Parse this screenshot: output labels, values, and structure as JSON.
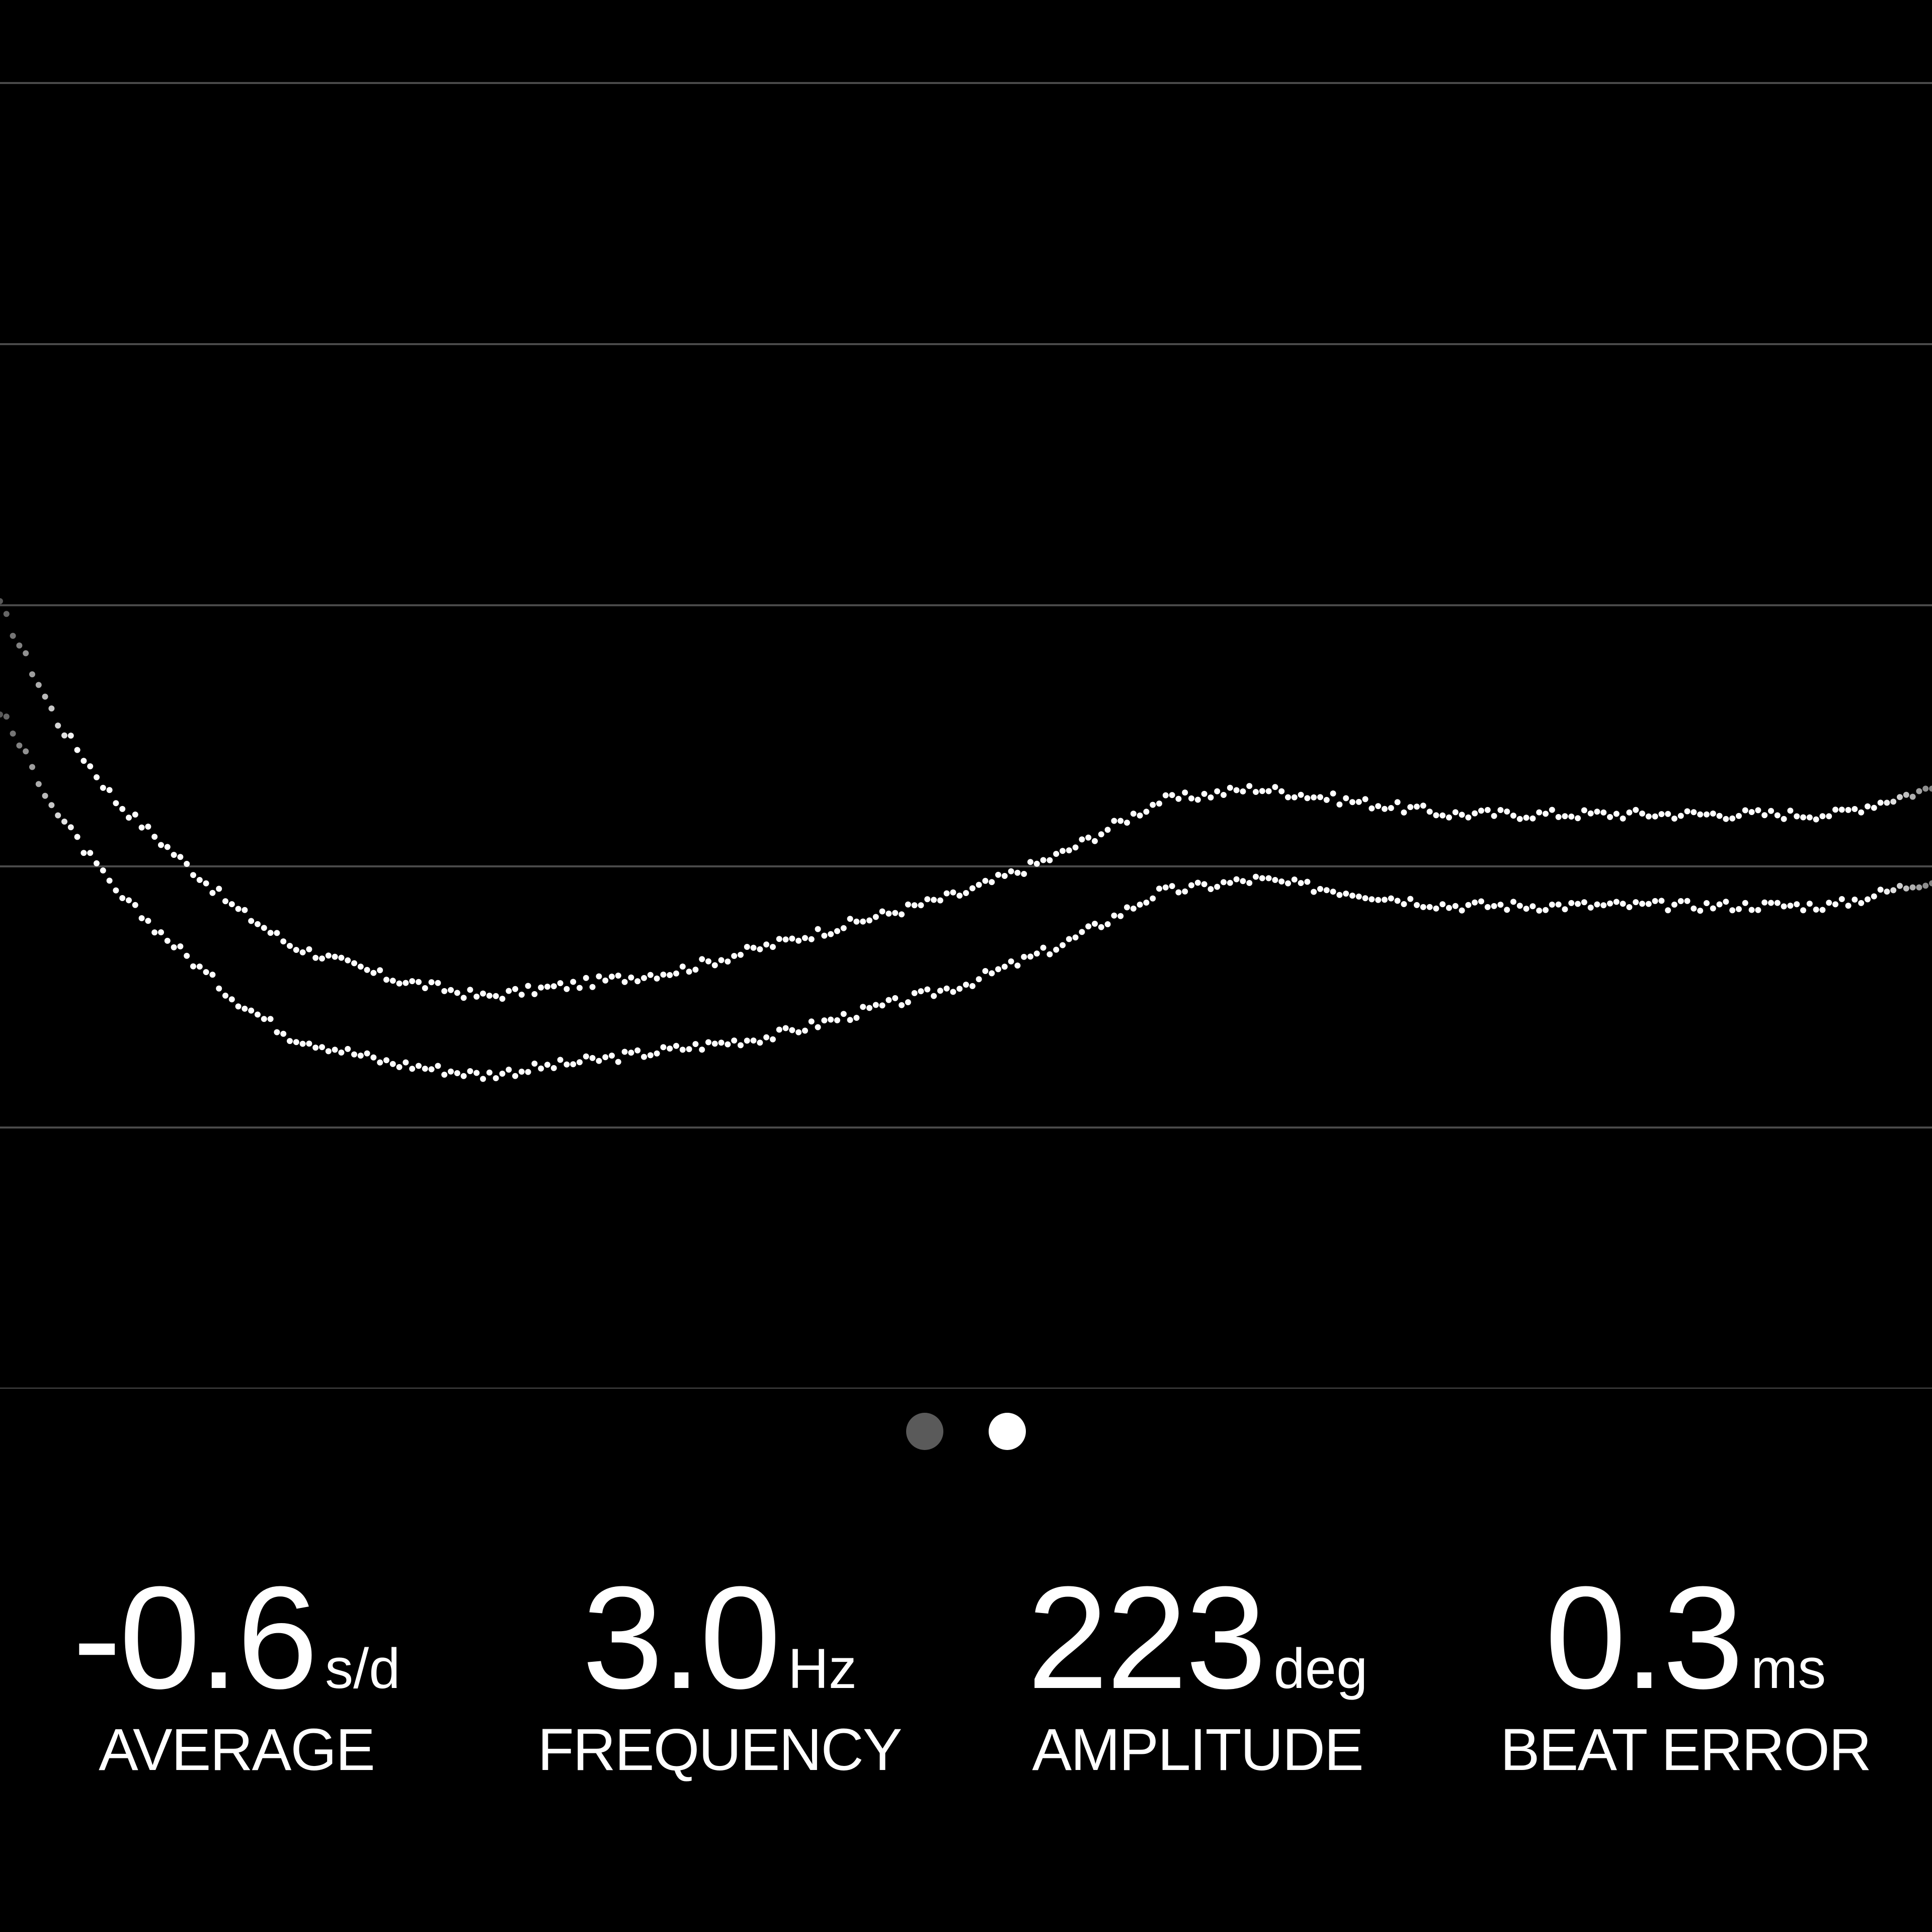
{
  "colors": {
    "background": "#000000",
    "gridline": "#4a4a4a",
    "points": "#ffffff",
    "dot_inactive": "#5a5a5a",
    "dot_active": "#ffffff"
  },
  "pager": {
    "count": 2,
    "active_index": 1
  },
  "stats": {
    "average": {
      "value": "-0.6",
      "unit": "s/d",
      "label": "AVERAGE"
    },
    "frequency": {
      "value": "3.0",
      "unit": "Hz",
      "label": "FREQUENCY"
    },
    "amplitude": {
      "value": "223",
      "unit": "deg",
      "label": "AMPLITUDE"
    },
    "beat_error": {
      "value": "0.3",
      "unit": "ms",
      "label": "BEAT ERROR"
    }
  },
  "chart_data": {
    "type": "scatter",
    "title": "",
    "xlabel": "",
    "ylabel": "",
    "gridlines": 6,
    "xlim": [
      0,
      100
    ],
    "ylim": [
      -5,
      5
    ],
    "series": [
      {
        "x": [
          0,
          3,
          6,
          9,
          12,
          15,
          20,
          25,
          30,
          35,
          40,
          45,
          50,
          55,
          60,
          65,
          70,
          75,
          80,
          85,
          90,
          95,
          100
        ],
        "y": [
          1.0,
          0.1,
          -0.5,
          -0.9,
          -1.3,
          -1.6,
          -1.85,
          -2.0,
          -1.9,
          -1.8,
          -1.6,
          -1.4,
          -1.2,
          -0.9,
          -0.5,
          -0.4,
          -0.5,
          -0.6,
          -0.6,
          -0.6,
          -0.6,
          -0.6,
          -0.4
        ]
      },
      {
        "x": [
          0,
          3,
          6,
          9,
          12,
          15,
          20,
          25,
          30,
          35,
          40,
          45,
          50,
          55,
          60,
          65,
          70,
          75,
          80,
          85,
          90,
          95,
          100
        ],
        "y": [
          0.2,
          -0.6,
          -1.2,
          -1.6,
          -2.0,
          -2.3,
          -2.5,
          -2.6,
          -2.5,
          -2.4,
          -2.3,
          -2.1,
          -1.9,
          -1.6,
          -1.2,
          -1.1,
          -1.2,
          -1.3,
          -1.3,
          -1.3,
          -1.3,
          -1.3,
          -1.1
        ]
      }
    ]
  }
}
